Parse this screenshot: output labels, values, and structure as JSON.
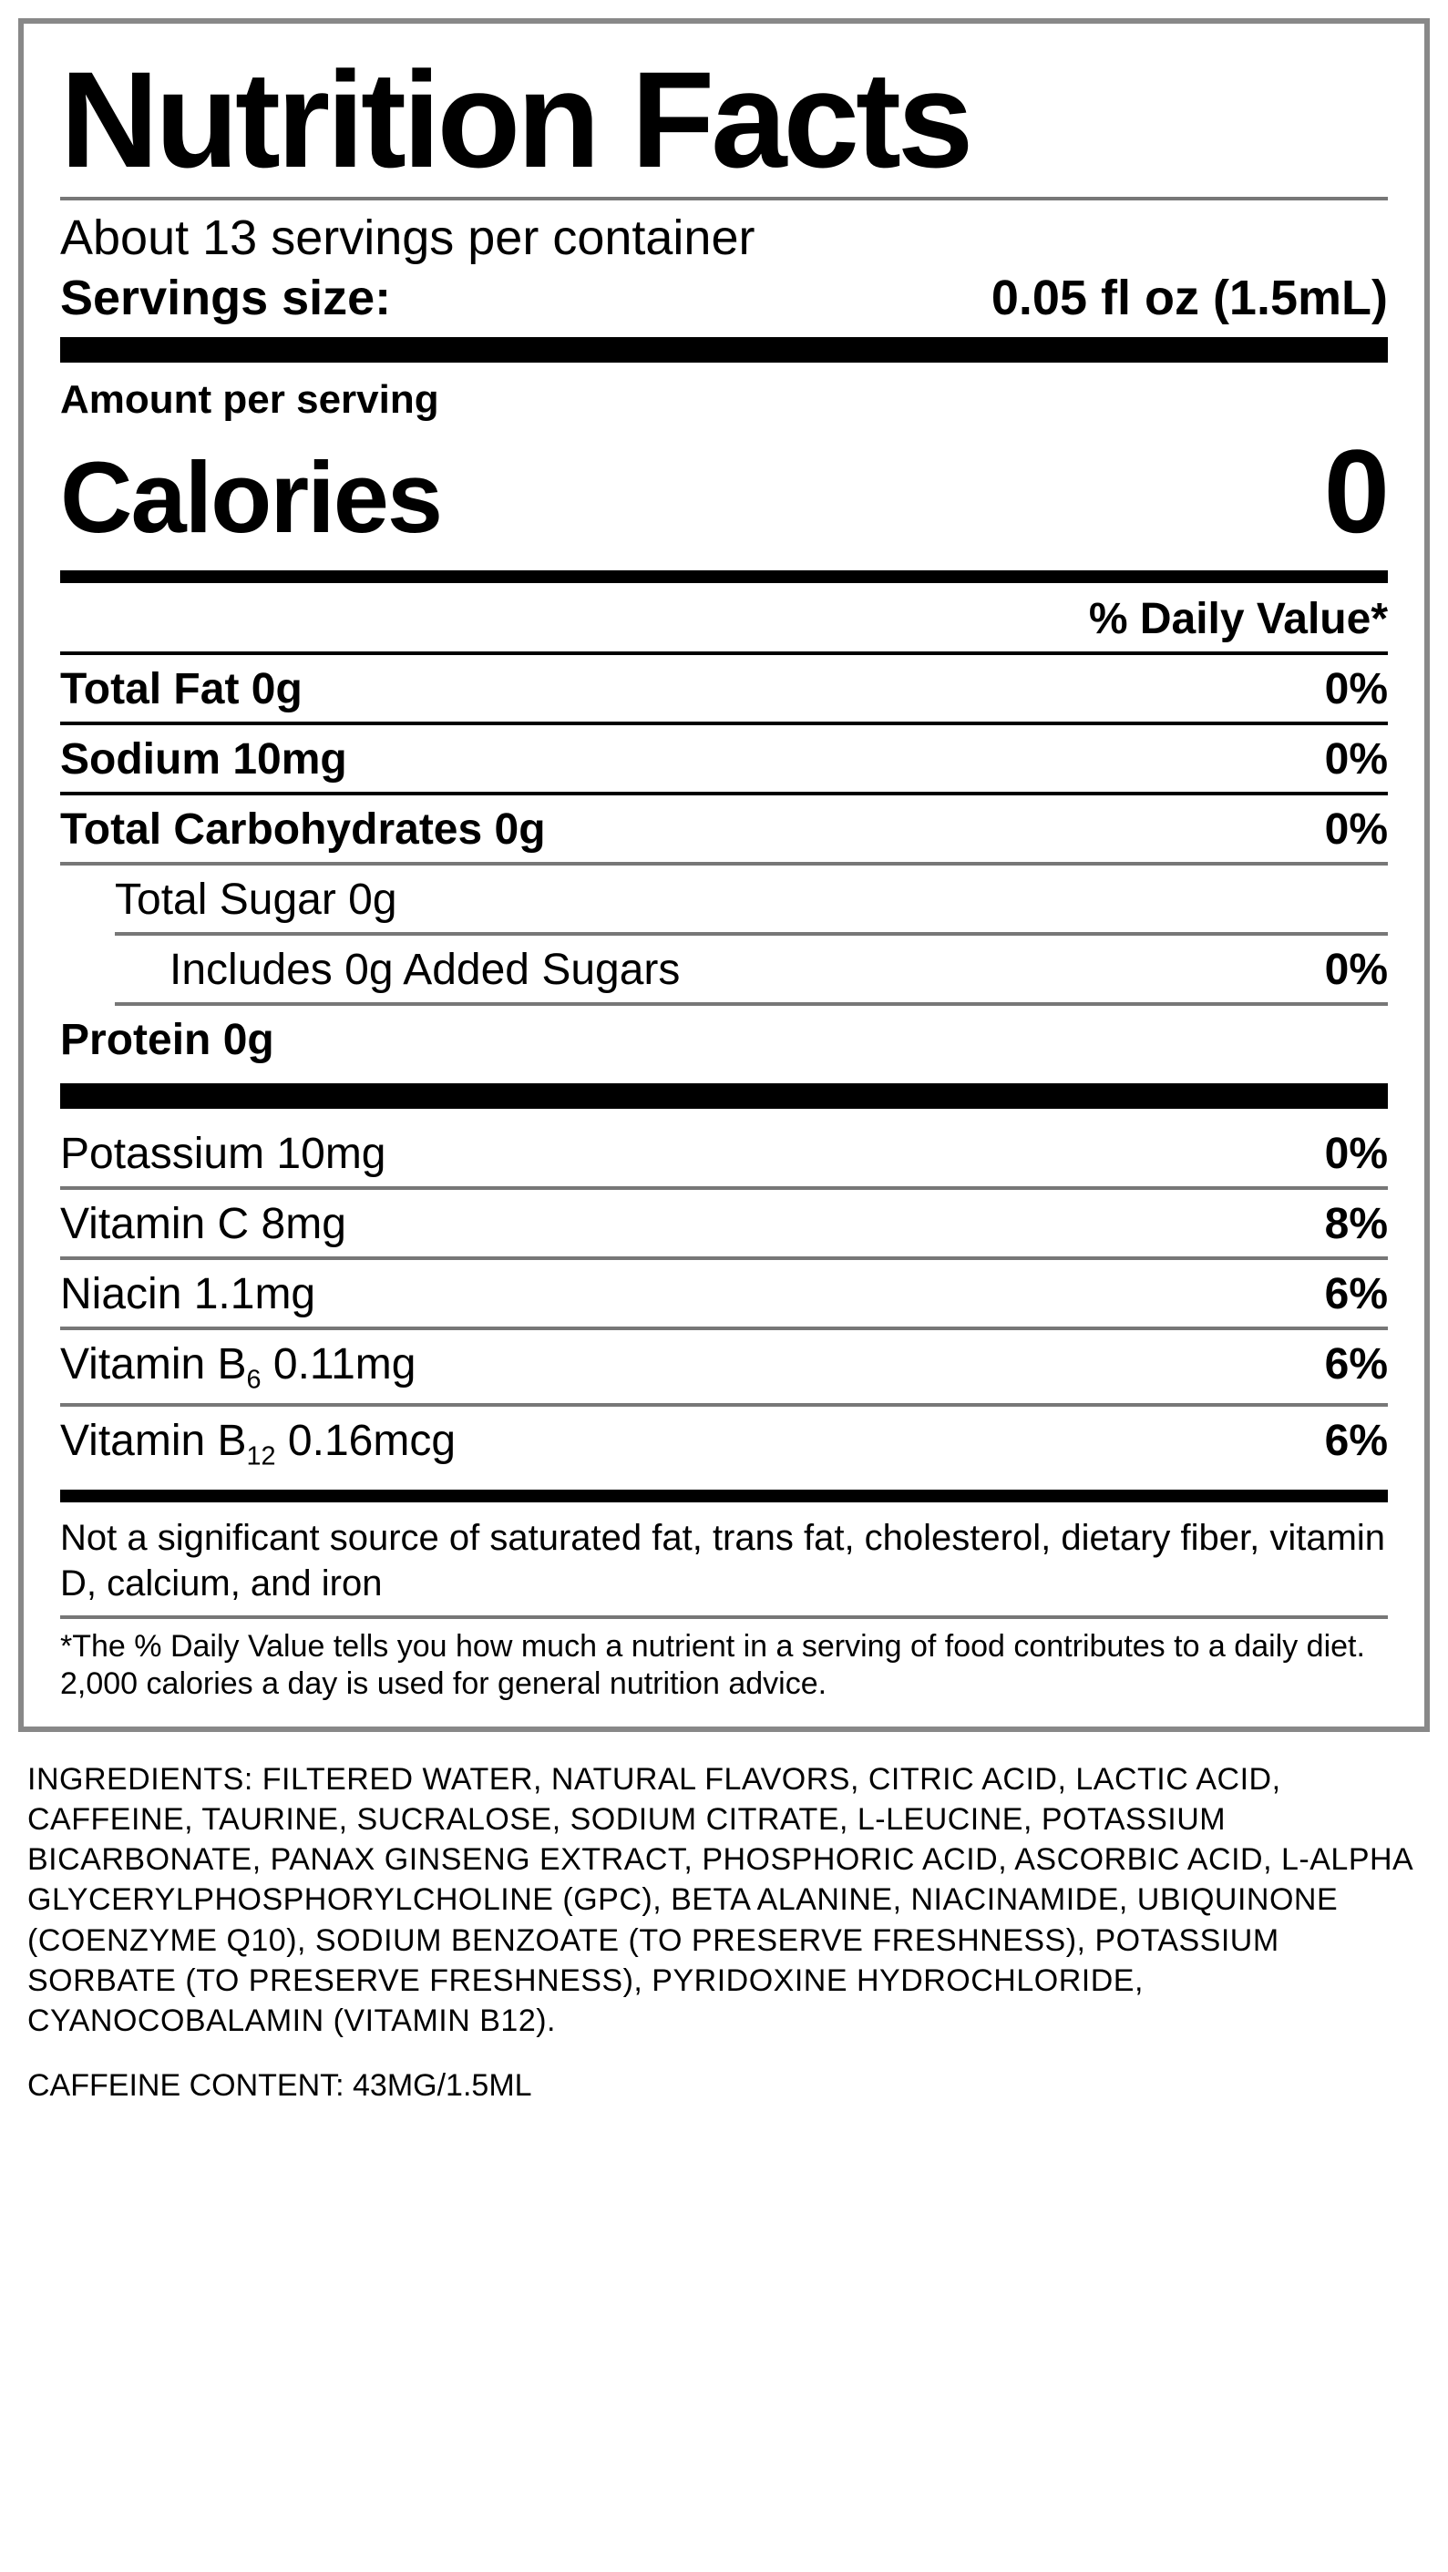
{
  "title": "Nutrition Facts",
  "servings_per": "About 13 servings per container",
  "serving_size_label": "Servings size:",
  "serving_size_value": "0.05 fl oz (1.5mL)",
  "amount_per": "Amount per serving",
  "calories_label": "Calories",
  "calories_value": "0",
  "dv_header": "% Daily Value*",
  "rows": {
    "total_fat": {
      "label": "Total Fat 0g",
      "dv": "0%"
    },
    "sodium": {
      "label": "Sodium 10mg",
      "dv": "0%"
    },
    "total_carb": {
      "label": "Total Carbohydrates 0g",
      "dv": "0%"
    },
    "total_sugar": {
      "label": "Total Sugar 0g",
      "dv": ""
    },
    "added_sugar": {
      "label": "Includes 0g Added Sugars",
      "dv": "0%"
    },
    "protein": {
      "label": "Protein 0g",
      "dv": ""
    },
    "potassium": {
      "label": "Potassium 10mg",
      "dv": "0%"
    },
    "vitc": {
      "label": "Vitamin C 8mg",
      "dv": "8%"
    },
    "niacin": {
      "label": "Niacin 1.1mg",
      "dv": "6%"
    },
    "b6_pre": "Vitamin B",
    "b6_sub": "6",
    "b6_post": " 0.11mg",
    "b6_dv": "6%",
    "b12_pre": "Vitamin B",
    "b12_sub": "12",
    "b12_post": " 0.16mcg",
    "b12_dv": "6%"
  },
  "note": "Not a significant source of saturated fat, trans fat, cholesterol, dietary fiber, vitamin D, calcium, and iron",
  "footnote": "*The % Daily Value tells you how much a nutrient in a serving of food contributes to a daily diet. 2,000 calories a day is used for general nutrition advice.",
  "ingredients": "INGREDIENTS: FILTERED WATER, NATURAL FLAVORS, CITRIC ACID, LACTIC ACID, CAFFEINE, TAURINE, SUCRALOSE, SODIUM CITRATE, L-LEUCINE, POTASSIUM BICARBONATE, PANAX GINSENG EXTRACT, PHOSPHORIC ACID, ASCORBIC ACID, L-ALPHA GLYCERYLPHOSPHORYLCHOLINE (GPC), BETA ALANINE, NIACINAMIDE, UBIQUINONE (COENZYME Q10), SODIUM BENZOATE (TO PRESERVE FRESHNESS), POTASSIUM SORBATE (TO PRESERVE FRESHNESS), PYRIDOXINE HYDROCHLORIDE, CYANOCOBALAMIN (VITAMIN B12).",
  "caffeine": "CAFFEINE CONTENT: 43MG/1.5ML"
}
